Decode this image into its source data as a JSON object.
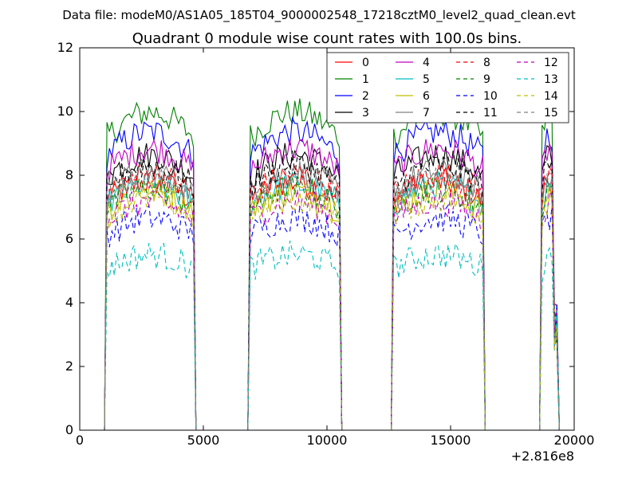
{
  "figure": {
    "suptitle": "Data file: modeM0/AS1A05_185T04_9000002548_17218cztM0_level2_quad_clean.evt"
  },
  "chart_data": {
    "type": "line",
    "title": "Quadrant 0 module wise count rates with 100.0s bins.",
    "xlabel": "",
    "ylabel": "",
    "x_offset_label": "+2.816e8",
    "xlim": [
      0,
      20000
    ],
    "ylim": [
      0,
      12
    ],
    "xticks": [
      0,
      5000,
      10000,
      15000,
      20000
    ],
    "yticks": [
      0,
      2,
      4,
      6,
      8,
      10,
      12
    ],
    "grid": false,
    "legend": {
      "placement": "top-right",
      "columns": 4
    },
    "active_intervals": [
      [
        1100,
        4600
      ],
      [
        6900,
        10500
      ],
      [
        12700,
        16300
      ],
      [
        18700,
        19300
      ]
    ],
    "bin_seconds": 100,
    "series": [
      {
        "name": "0",
        "color": "#ff0000",
        "dash": "solid",
        "level": 7.5
      },
      {
        "name": "1",
        "color": "#008000",
        "dash": "solid",
        "level": 9.6
      },
      {
        "name": "2",
        "color": "#0000ff",
        "dash": "solid",
        "level": 9.0
      },
      {
        "name": "3",
        "color": "#000000",
        "dash": "solid",
        "level": 8.3
      },
      {
        "name": "4",
        "color": "#bf00bf",
        "dash": "solid",
        "level": 8.5
      },
      {
        "name": "5",
        "color": "#00bfbf",
        "dash": "solid",
        "level": 7.4
      },
      {
        "name": "6",
        "color": "#bfbf00",
        "dash": "solid",
        "level": 7.2
      },
      {
        "name": "7",
        "color": "#808080",
        "dash": "solid",
        "level": 7.8
      },
      {
        "name": "8",
        "color": "#ff0000",
        "dash": "dashed",
        "level": 7.7
      },
      {
        "name": "9",
        "color": "#008000",
        "dash": "dashed",
        "level": 7.3
      },
      {
        "name": "10",
        "color": "#0000ff",
        "dash": "dashed",
        "level": 6.4
      },
      {
        "name": "11",
        "color": "#000000",
        "dash": "dashed",
        "level": 8.0
      },
      {
        "name": "12",
        "color": "#bf00bf",
        "dash": "dashed",
        "level": 6.9
      },
      {
        "name": "13",
        "color": "#00bfbf",
        "dash": "dashed",
        "level": 5.3
      },
      {
        "name": "14",
        "color": "#bfbf00",
        "dash": "dashed",
        "level": 7.0
      },
      {
        "name": "15",
        "color": "#808080",
        "dash": "dashed",
        "level": 7.6
      }
    ]
  }
}
